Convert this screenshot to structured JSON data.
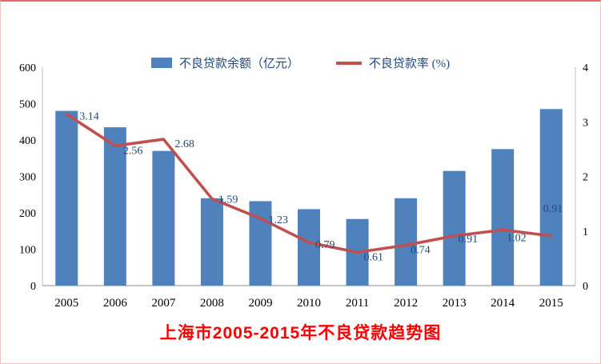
{
  "chart_data": {
    "type": "combo",
    "title": "上海市2005-2015年不良贷款趋势图",
    "title_color": "#FF0000",
    "categories": [
      "2005",
      "2006",
      "2007",
      "2008",
      "2009",
      "2010",
      "2011",
      "2012",
      "2013",
      "2014",
      "2015"
    ],
    "series": [
      {
        "name": "不良贷款余额（亿元）",
        "type": "bar",
        "axis": "left",
        "color": "#4F81BD",
        "values": [
          480,
          435,
          370,
          240,
          232,
          210,
          183,
          240,
          315,
          375,
          485
        ]
      },
      {
        "name": "不良贷款率 (%)",
        "type": "line",
        "axis": "right",
        "color": "#C0504D",
        "values": [
          3.14,
          2.56,
          2.68,
          1.59,
          1.23,
          0.79,
          0.61,
          0.74,
          0.91,
          1.02,
          0.91
        ]
      }
    ],
    "left_axis": {
      "min": 0,
      "max": 600,
      "step": 100
    },
    "right_axis": {
      "min": 0,
      "max": 4,
      "step": 1
    },
    "legend_position": "top",
    "grid": false,
    "data_label_color": "#1F497D",
    "axis_label_color": "#000000"
  }
}
